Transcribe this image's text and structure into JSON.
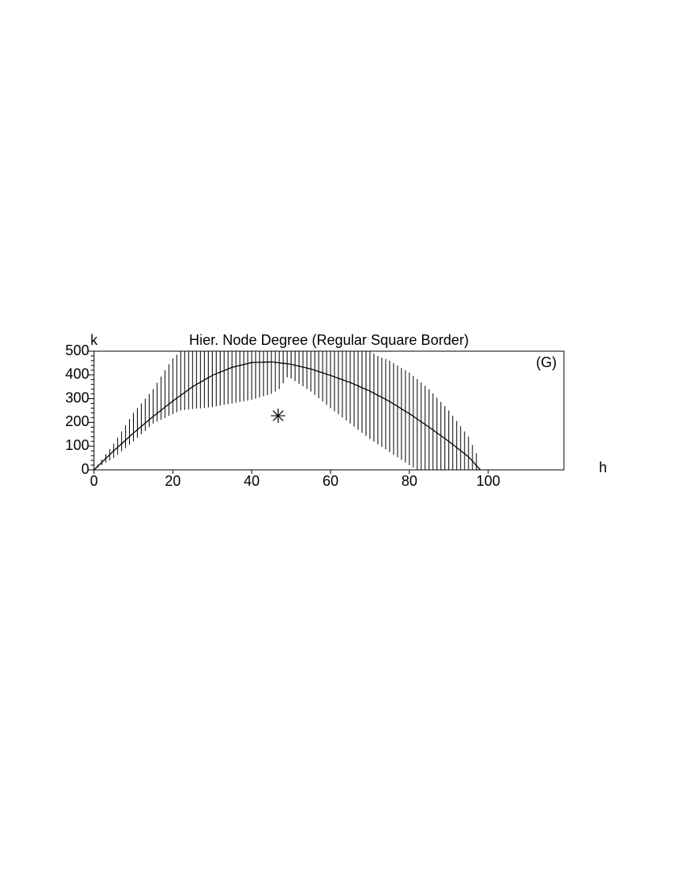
{
  "chart_data": {
    "type": "line",
    "title": "Hier. Node Degree (Regular Square Border)",
    "xlabel": "h",
    "ylabel": "k",
    "annotation": "(G)",
    "color": "#000000",
    "xlim": [
      0,
      119.2
    ],
    "ylim": [
      0,
      500
    ],
    "xticks": [
      0,
      20,
      40,
      60,
      80,
      100
    ],
    "yticks": [
      0,
      100,
      200,
      300,
      400,
      500
    ],
    "yminorticks": [
      20,
      40,
      60,
      80,
      120,
      140,
      160,
      180,
      220,
      240,
      260,
      280,
      320,
      340,
      360,
      380,
      420,
      440,
      460,
      480
    ],
    "x": [
      0,
      1,
      2,
      3,
      4,
      5,
      6,
      7,
      8,
      9,
      10,
      11,
      12,
      13,
      14,
      15,
      16,
      17,
      18,
      19,
      20,
      21,
      22,
      23,
      24,
      25,
      26,
      27,
      28,
      29,
      30,
      31,
      32,
      33,
      34,
      35,
      36,
      37,
      38,
      39,
      40,
      41,
      42,
      43,
      44,
      45,
      46,
      47,
      48,
      49,
      50,
      51,
      52,
      53,
      54,
      55,
      56,
      57,
      58,
      59,
      60,
      61,
      62,
      63,
      64,
      65,
      66,
      67,
      68,
      69,
      70,
      71,
      72,
      73,
      74,
      75,
      76,
      77,
      78,
      79,
      80,
      81,
      82,
      83,
      84,
      85,
      86,
      87,
      88,
      89,
      90,
      91,
      92,
      93,
      94,
      95,
      96,
      97,
      98
    ],
    "series": [
      {
        "values": [
          0,
          16,
          32,
          48,
          64,
          80,
          95,
          110,
          125,
          140,
          155,
          169,
          183,
          197,
          211,
          225,
          238,
          251,
          264,
          277,
          290,
          302,
          314,
          326,
          338,
          350,
          360,
          369,
          379,
          388,
          398,
          405,
          412,
          418,
          425,
          432,
          436,
          440,
          444,
          448,
          452,
          453,
          453,
          454,
          454,
          455,
          453,
          451,
          449,
          447,
          445,
          441,
          437,
          433,
          429,
          425,
          420,
          414,
          409,
          403,
          398,
          392,
          386,
          380,
          374,
          368,
          361,
          354,
          346,
          339,
          332,
          323,
          314,
          306,
          297,
          288,
          278,
          268,
          257,
          247,
          237,
          226,
          214,
          203,
          191,
          180,
          168,
          156,
          144,
          132,
          120,
          107,
          94,
          81,
          68,
          55,
          37,
          18,
          0
        ]
      }
    ],
    "intervals": {
      "low": [
        null,
        10,
        20,
        30,
        40,
        50,
        64,
        78,
        92,
        106,
        120,
        135,
        150,
        165,
        180,
        195,
        203,
        211,
        219,
        227,
        235,
        243,
        250,
        252,
        254,
        256,
        258,
        259,
        261,
        263,
        265,
        268,
        271,
        274,
        277,
        280,
        283,
        286,
        289,
        292,
        295,
        300,
        305,
        310,
        315,
        320,
        330,
        340,
        365,
        390,
        385,
        374,
        363,
        352,
        341,
        330,
        316,
        302,
        288,
        274,
        260,
        247,
        234,
        221,
        208,
        195,
        182,
        169,
        156,
        143,
        130,
        119,
        108,
        97,
        86,
        75,
        64,
        53,
        42,
        31,
        20,
        10,
        0,
        0,
        0,
        0,
        0,
        0,
        0,
        0,
        0,
        0,
        0,
        0,
        0,
        0,
        0,
        0,
        null
      ],
      "high": [
        null,
        22,
        44,
        66,
        88,
        110,
        136,
        162,
        188,
        214,
        240,
        260,
        280,
        300,
        320,
        340,
        367,
        393,
        420,
        445,
        470,
        485,
        500,
        500,
        500,
        500,
        500,
        500,
        500,
        500,
        500,
        500,
        500,
        500,
        500,
        500,
        500,
        500,
        500,
        500,
        500,
        500,
        500,
        500,
        500,
        500,
        500,
        500,
        500,
        500,
        500,
        500,
        500,
        500,
        500,
        500,
        500,
        500,
        500,
        500,
        500,
        500,
        500,
        500,
        500,
        500,
        500,
        500,
        500,
        500,
        500,
        490,
        480,
        473,
        467,
        460,
        450,
        440,
        430,
        420,
        410,
        396,
        382,
        368,
        354,
        340,
        322,
        304,
        286,
        268,
        250,
        228,
        206,
        184,
        162,
        140,
        105,
        70,
        null
      ]
    },
    "marker": {
      "x": 46.7,
      "y": 228
    }
  }
}
